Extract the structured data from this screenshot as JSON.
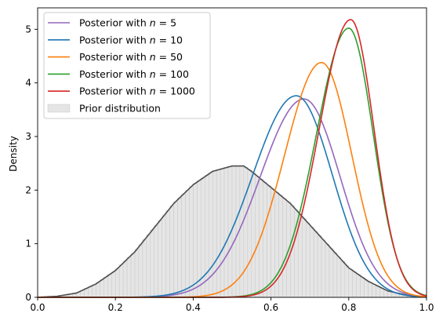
{
  "chart_data": {
    "type": "line",
    "title": "",
    "xlabel": "",
    "ylabel": "Density",
    "xlim": [
      0.0,
      1.0
    ],
    "ylim": [
      0,
      5.4
    ],
    "x_ticks": [
      "0.0",
      "0.2",
      "0.4",
      "0.6",
      "0.8",
      "1.0"
    ],
    "y_ticks": [
      "0",
      "1",
      "2",
      "3",
      "4",
      "5"
    ],
    "grid": false,
    "legend_position": "upper-left",
    "series": [
      {
        "name": "Posterior with n = 5",
        "name_prefix": "Posterior with ",
        "name_var": "n",
        "name_value": "= 5",
        "color": "#9467bd",
        "mode": 0.685,
        "peak": 3.7,
        "sd_left": 0.113,
        "sd_right": 0.093
      },
      {
        "name": "Posterior with n = 10",
        "name_prefix": "Posterior with ",
        "name_var": "n",
        "name_value": "= 10",
        "color": "#1f77b4",
        "mode": 0.665,
        "peak": 3.76,
        "sd_left": 0.112,
        "sd_right": 0.093
      },
      {
        "name": "Posterior with n = 50",
        "name_prefix": "Posterior with ",
        "name_var": "n",
        "name_value": "= 50",
        "color": "#ff7f0e",
        "mode": 0.73,
        "peak": 4.38,
        "sd_left": 0.095,
        "sd_right": 0.078
      },
      {
        "name": "Posterior with n = 100",
        "name_prefix": "Posterior with ",
        "name_var": "n",
        "name_value": "= 100",
        "color": "#2ca02c",
        "mode": 0.8,
        "peak": 5.02,
        "sd_left": 0.083,
        "sd_right": 0.063
      },
      {
        "name": "Posterior with n = 1000",
        "name_prefix": "Posterior with ",
        "name_var": "n",
        "name_value": "= 1000",
        "color": "#d62728",
        "mode": 0.805,
        "peak": 5.18,
        "sd_left": 0.081,
        "sd_right": 0.06
      }
    ],
    "prior": {
      "name": "Prior distribution",
      "line_color": "#4d4d4d",
      "fill_color": "#e5e5e5",
      "bar_edge_color": "#c8c8c8",
      "bin_width": 0.01,
      "x": [
        0.0,
        0.05,
        0.1,
        0.15,
        0.2,
        0.25,
        0.3,
        0.35,
        0.4,
        0.45,
        0.5,
        0.53,
        0.55,
        0.6,
        0.65,
        0.7,
        0.75,
        0.8,
        0.85,
        0.9,
        0.95,
        1.0
      ],
      "density": [
        0.0,
        0.02,
        0.08,
        0.25,
        0.5,
        0.85,
        1.3,
        1.75,
        2.1,
        2.35,
        2.45,
        2.45,
        2.35,
        2.05,
        1.75,
        1.35,
        0.95,
        0.55,
        0.3,
        0.12,
        0.04,
        0.0
      ]
    }
  }
}
